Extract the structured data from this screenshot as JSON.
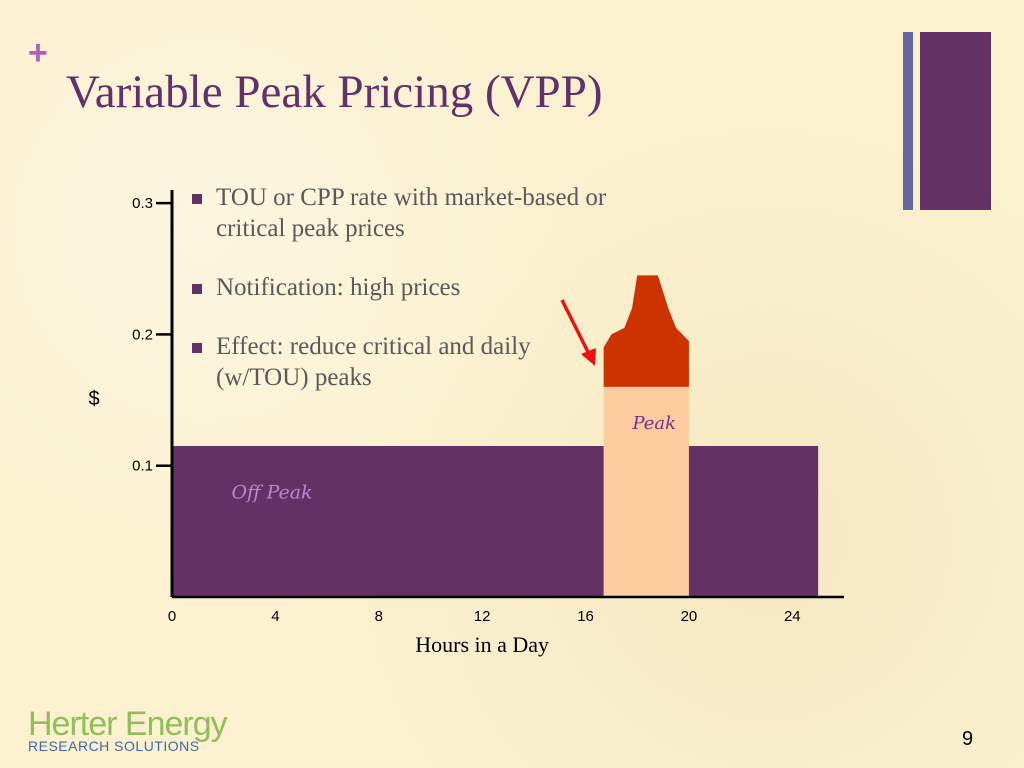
{
  "slide": {
    "plus_mark": "+",
    "title": "Variable Peak Pricing (VPP)",
    "page_number": "9",
    "logo": {
      "main": "Herter Energy",
      "sub": "RESEARCH SOLUTIONS"
    },
    "colors": {
      "title": "#62306a",
      "accent_bar_thin": "#6565a5",
      "accent_bar_wide": "#633264",
      "background": "#fbf1cf"
    }
  },
  "bullets": [
    "TOU or CPP rate with market-based or critical peak prices",
    "Notification: high prices",
    "Effect: reduce critical and daily (w/TOU) peaks"
  ],
  "chart_data": {
    "type": "area",
    "title": "",
    "xlabel": "Hours in a Day",
    "ylabel": "$",
    "x_ticks": [
      0,
      4,
      8,
      12,
      16,
      20,
      24
    ],
    "y_ticks": [
      0.1,
      0.2,
      0.3
    ],
    "xlim": [
      0,
      26
    ],
    "ylim": [
      0,
      0.31
    ],
    "grid": false,
    "regions": [
      {
        "name": "Off Peak",
        "label": "Off Peak",
        "x_start": 0,
        "x_end": 25,
        "y_start": 0,
        "y_end": 0.115,
        "color": "#633264"
      },
      {
        "name": "Peak",
        "label": "Peak",
        "x_start": 16.7,
        "x_end": 20,
        "y_start": 0,
        "y_end": 0.16,
        "color": "#fdcd9f"
      }
    ],
    "critical_peak": {
      "color": "#cc3300",
      "base": 0.16,
      "points": [
        [
          16.7,
          0.19
        ],
        [
          17.0,
          0.2
        ],
        [
          17.5,
          0.205
        ],
        [
          17.8,
          0.22
        ],
        [
          18.0,
          0.245
        ],
        [
          18.8,
          0.245
        ],
        [
          19.2,
          0.22
        ],
        [
          19.5,
          0.205
        ],
        [
          20,
          0.195
        ]
      ]
    },
    "arrow_color": "#ee1111"
  }
}
